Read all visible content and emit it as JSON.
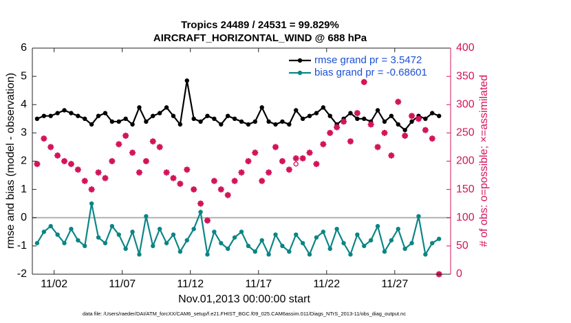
{
  "chart_data": {
    "type": "line",
    "title": "Tropics 24489 / 24531 = 99.829%",
    "subtitle": "AIRCRAFT_HORIZONTAL_WIND @ 688 hPa",
    "xlabel": "Nov.01,2013 00:00:00 start",
    "ylabel": "rmse and bias (model - observation)",
    "y2label": "# of obs: o=possible; ×=assimilated",
    "footnote": "data file: /Users/raeder/DAI/ATM_forcXX/CAM6_setup/f.e21.FHIST_BGC.f09_025.CAM6assim.011/Diags_NTrS_2013-11/obs_diag_output.nc",
    "xlim": [
      -0.6,
      30.1
    ],
    "xticks": [
      {
        "value": 1,
        "label": "11/02"
      },
      {
        "value": 6,
        "label": "11/07"
      },
      {
        "value": 11,
        "label": "11/12"
      },
      {
        "value": 16,
        "label": "11/17"
      },
      {
        "value": 21,
        "label": "11/22"
      },
      {
        "value": 26,
        "label": "11/27"
      }
    ],
    "ylim": [
      -2,
      6
    ],
    "yticks": [
      -2,
      -1,
      0,
      1,
      2,
      3,
      4,
      5,
      6
    ],
    "y2lim": [
      0,
      400
    ],
    "y2ticks": [
      0,
      50,
      100,
      150,
      200,
      250,
      300,
      350,
      400
    ],
    "reference_line": 0,
    "legend": "upper right",
    "x": [
      -0.25,
      0.25,
      0.75,
      1.25,
      1.75,
      2.25,
      2.75,
      3.25,
      3.75,
      4.25,
      4.75,
      5.25,
      5.75,
      6.25,
      6.75,
      7.25,
      7.75,
      8.25,
      8.75,
      9.25,
      9.75,
      10.25,
      10.75,
      11.25,
      11.75,
      12.25,
      12.75,
      13.25,
      13.75,
      14.25,
      14.75,
      15.25,
      15.75,
      16.25,
      16.75,
      17.25,
      17.75,
      18.25,
      18.75,
      19.25,
      19.75,
      20.25,
      20.75,
      21.25,
      21.75,
      22.25,
      22.75,
      23.25,
      23.75,
      24.25,
      24.75,
      25.25,
      25.75,
      26.25,
      26.75,
      27.25,
      27.75,
      28.25,
      28.75,
      29.25
    ],
    "series": [
      {
        "name": "rmse grand pr = 3.5472",
        "color": "#000000",
        "marker": "o",
        "values": [
          3.5,
          3.6,
          3.6,
          3.7,
          3.8,
          3.7,
          3.6,
          3.5,
          3.3,
          3.6,
          3.7,
          3.4,
          3.4,
          3.5,
          3.3,
          3.9,
          3.4,
          3.6,
          3.7,
          3.9,
          3.6,
          3.3,
          4.85,
          3.5,
          3.4,
          3.6,
          3.5,
          3.3,
          3.6,
          3.5,
          3.4,
          3.3,
          3.4,
          3.9,
          3.4,
          3.3,
          3.4,
          3.3,
          3.8,
          3.5,
          3.6,
          3.7,
          3.9,
          3.6,
          3.3,
          3.5,
          3.7,
          3.5,
          3.5,
          3.4,
          3.8,
          3.4,
          3.6,
          3.3,
          3.1,
          3.4,
          3.6,
          3.5,
          3.7,
          3.6
        ]
      },
      {
        "name": "bias grand pr = -0.68601",
        "color": "#0b8585",
        "marker": "o",
        "values": [
          -0.9,
          -0.5,
          -0.3,
          -0.6,
          -0.9,
          -0.4,
          -0.8,
          -1.0,
          0.5,
          -0.7,
          -0.9,
          -0.3,
          -0.6,
          -1.1,
          -0.5,
          -1.3,
          0.05,
          -1.0,
          -0.4,
          -0.9,
          -0.6,
          -1.2,
          -0.8,
          -0.4,
          0.2,
          -1.3,
          -0.5,
          -0.9,
          -1.1,
          -0.7,
          -0.5,
          -1.0,
          -1.2,
          -0.8,
          -1.3,
          -0.6,
          -1.0,
          -1.2,
          -0.6,
          -0.9,
          -1.3,
          -0.7,
          -0.5,
          -1.1,
          -0.4,
          -0.9,
          -1.3,
          -0.6,
          -1.0,
          -0.8,
          -0.3,
          -1.2,
          -0.8,
          -0.4,
          -1.1,
          -0.9,
          0.05,
          -1.3,
          -0.9,
          -0.75
        ]
      },
      {
        "axis": "y2",
        "color": "#d3145a",
        "marker": "o",
        "values": [
          195,
          240,
          225,
          210,
          200,
          195,
          185,
          165,
          150,
          180,
          170,
          200,
          230,
          245,
          215,
          180,
          200,
          235,
          225,
          180,
          170,
          160,
          185,
          150,
          125,
          95,
          165,
          150,
          140,
          165,
          180,
          200,
          215,
          165,
          180,
          225,
          200,
          185,
          195,
          205,
          215,
          195,
          230,
          250,
          260,
          270,
          235,
          285,
          340,
          265,
          225,
          250,
          210,
          305,
          245,
          280,
          275,
          255,
          240,
          0
        ]
      },
      {
        "axis": "y2",
        "color": "#d3145a",
        "marker": "*",
        "values": [
          195,
          240,
          225,
          210,
          200,
          195,
          185,
          165,
          150,
          180,
          170,
          200,
          230,
          245,
          215,
          180,
          200,
          235,
          225,
          180,
          170,
          160,
          185,
          150,
          125,
          95,
          165,
          150,
          140,
          165,
          180,
          200,
          215,
          165,
          180,
          225,
          200,
          185,
          205,
          205,
          215,
          195,
          230,
          250,
          260,
          270,
          235,
          285,
          340,
          265,
          225,
          250,
          210,
          305,
          245,
          280,
          275,
          255,
          240,
          0
        ]
      }
    ]
  }
}
